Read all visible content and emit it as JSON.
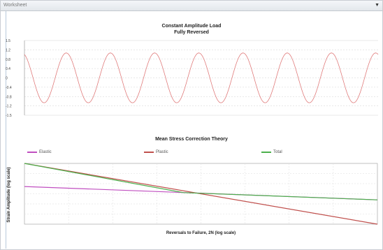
{
  "window": {
    "title": "Worksheet",
    "dropdown_glyph": "▼"
  },
  "chart_data": [
    {
      "type": "line",
      "title": "Constant Amplitude Load",
      "subtitle": "Fully Reversed",
      "yticks": [
        "1.5",
        "1.2",
        "0.8",
        "0.4",
        "0",
        "-0.4",
        "-0.8",
        "-1.2",
        "-1.5"
      ],
      "ylim": [
        -1.5,
        1.5
      ],
      "cycles": 8,
      "amplitude": 1,
      "series": [
        {
          "color": "#e07b7b"
        }
      ],
      "grid": true
    },
    {
      "type": "line",
      "title": "Mean Stress Correction Theory",
      "xlabel": "Reversals to Failure, 2N (log scale)",
      "ylabel": "Strain Amplitude (log scale)",
      "legend": "top",
      "grid": true,
      "series": [
        {
          "name": "Elastic",
          "color": "#c04fc0",
          "x": [
            0,
            1
          ],
          "y": [
            0.62,
            0.4
          ]
        },
        {
          "name": "Plastic",
          "color": "#c0504d",
          "x": [
            0,
            1
          ],
          "y": [
            1.0,
            0.0
          ]
        },
        {
          "name": "Total",
          "color": "#4cb04c",
          "x": [
            0,
            0.45,
            1
          ],
          "y": [
            1.0,
            0.52,
            0.4
          ]
        }
      ]
    }
  ]
}
